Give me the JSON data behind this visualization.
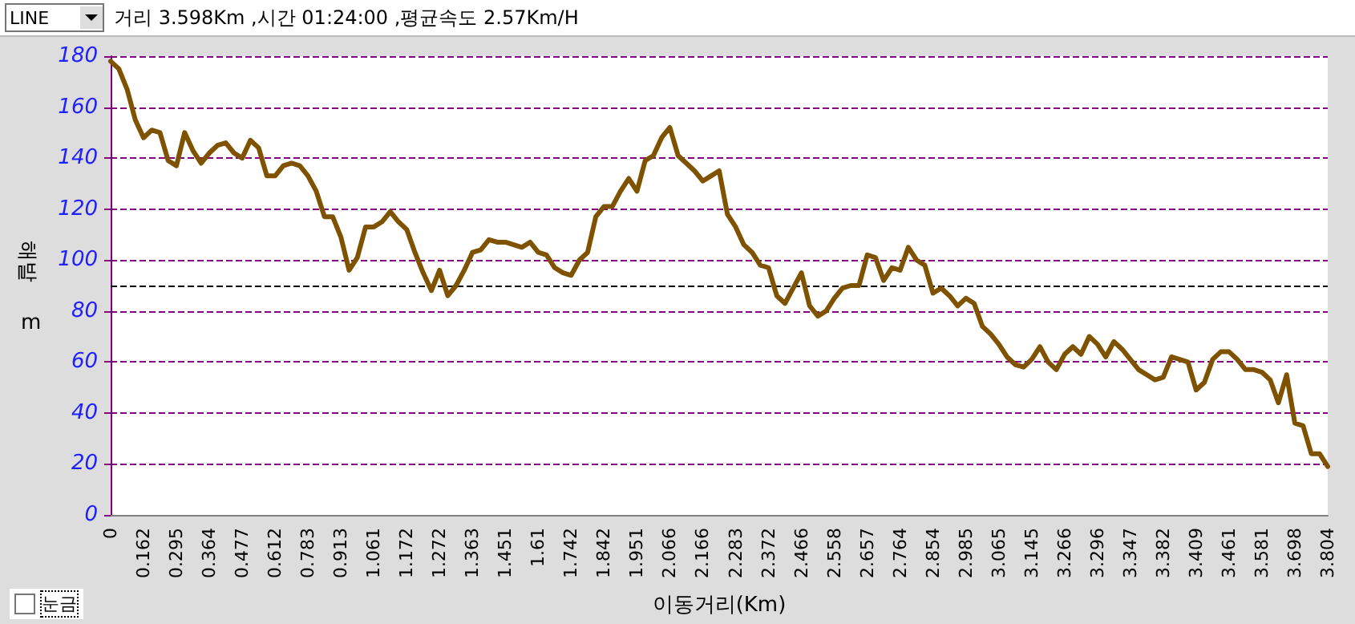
{
  "chart_data": {
    "type": "line",
    "title": "거리 3.598Km ,시간 01:24:00 ,평균속도 2.57Km/H",
    "xlabel": "이동거리(Km)",
    "ylabel": "해발 m",
    "annotations": [
      "LINE",
      "눈금"
    ],
    "categories": [
      "0",
      null,
      null,
      null,
      "0.162",
      null,
      null,
      null,
      "0.295",
      null,
      null,
      null,
      "0.364",
      null,
      null,
      null,
      "0.477",
      null,
      null,
      null,
      "0.612",
      null,
      null,
      null,
      "0.783",
      null,
      null,
      null,
      "0.913",
      null,
      null,
      null,
      "1.061",
      null,
      null,
      null,
      "1.172",
      null,
      null,
      null,
      "1.272",
      null,
      null,
      null,
      "1.363",
      null,
      null,
      null,
      "1.451",
      null,
      null,
      null,
      "1.61",
      null,
      null,
      null,
      "1.742",
      null,
      null,
      null,
      "1.842",
      null,
      null,
      null,
      "1.951",
      null,
      null,
      null,
      "2.066",
      null,
      null,
      null,
      "2.166",
      null,
      null,
      null,
      "2.283",
      null,
      null,
      null,
      "2.372",
      null,
      null,
      null,
      "2.466",
      null,
      null,
      null,
      "2.558",
      null,
      null,
      null,
      "2.657",
      null,
      null,
      null,
      "2.764",
      null,
      null,
      null,
      "2.854",
      null,
      null,
      null,
      "2.985",
      null,
      null,
      null,
      "3.065",
      null,
      null,
      null,
      "3.145",
      null,
      null,
      null,
      "3.266",
      null,
      null,
      null,
      "3.296",
      null,
      null,
      null,
      "3.347",
      null,
      null,
      null,
      "3.382",
      null,
      null,
      null,
      "3.409",
      null,
      null,
      null,
      "3.461",
      null,
      null,
      null,
      "3.581",
      null,
      null,
      null,
      "3.698",
      null,
      null,
      null,
      "3.804"
    ],
    "series": [
      {
        "color": "#7f5200",
        "values": [
          178,
          175,
          167,
          155,
          148,
          151,
          150,
          139,
          137,
          150,
          143,
          138,
          142,
          145,
          146,
          142,
          140,
          147,
          144,
          133,
          133,
          137,
          138,
          137,
          133,
          127,
          117,
          117,
          109,
          96,
          101,
          113,
          113,
          115,
          119,
          115,
          112,
          103,
          95,
          88,
          96,
          86,
          90,
          96,
          103,
          104,
          108,
          107,
          107,
          106,
          105,
          107,
          103,
          102,
          97,
          95,
          94,
          100,
          103,
          117,
          121,
          121,
          127,
          132,
          127,
          139,
          141,
          148,
          152,
          141,
          138,
          135,
          131,
          133,
          135,
          118,
          113,
          106,
          103,
          98,
          97,
          86,
          83,
          89,
          95,
          82,
          78,
          80,
          85,
          89,
          90,
          90,
          102,
          101,
          92,
          97,
          96,
          105,
          100,
          98,
          87,
          89,
          86,
          82,
          85,
          83,
          74,
          71,
          67,
          62,
          59,
          58,
          61,
          66,
          60,
          57,
          63,
          66,
          63,
          70,
          67,
          62,
          68,
          65,
          61,
          57,
          55,
          53,
          54,
          62,
          61,
          60,
          49,
          52,
          61,
          64,
          64,
          61,
          57,
          57,
          56,
          53,
          44,
          55,
          36,
          35,
          24,
          24,
          19
        ]
      }
    ],
    "ylim": [
      0,
      180
    ],
    "yticks": [
      0,
      20,
      40,
      60,
      80,
      100,
      120,
      140,
      160,
      180
    ],
    "grid": "y",
    "marker": "none",
    "line_style": "solid",
    "ref_lines": [
      {
        "axis": "y",
        "value": 90,
        "color": "#000000",
        "line_style": "dashed"
      }
    ]
  }
}
